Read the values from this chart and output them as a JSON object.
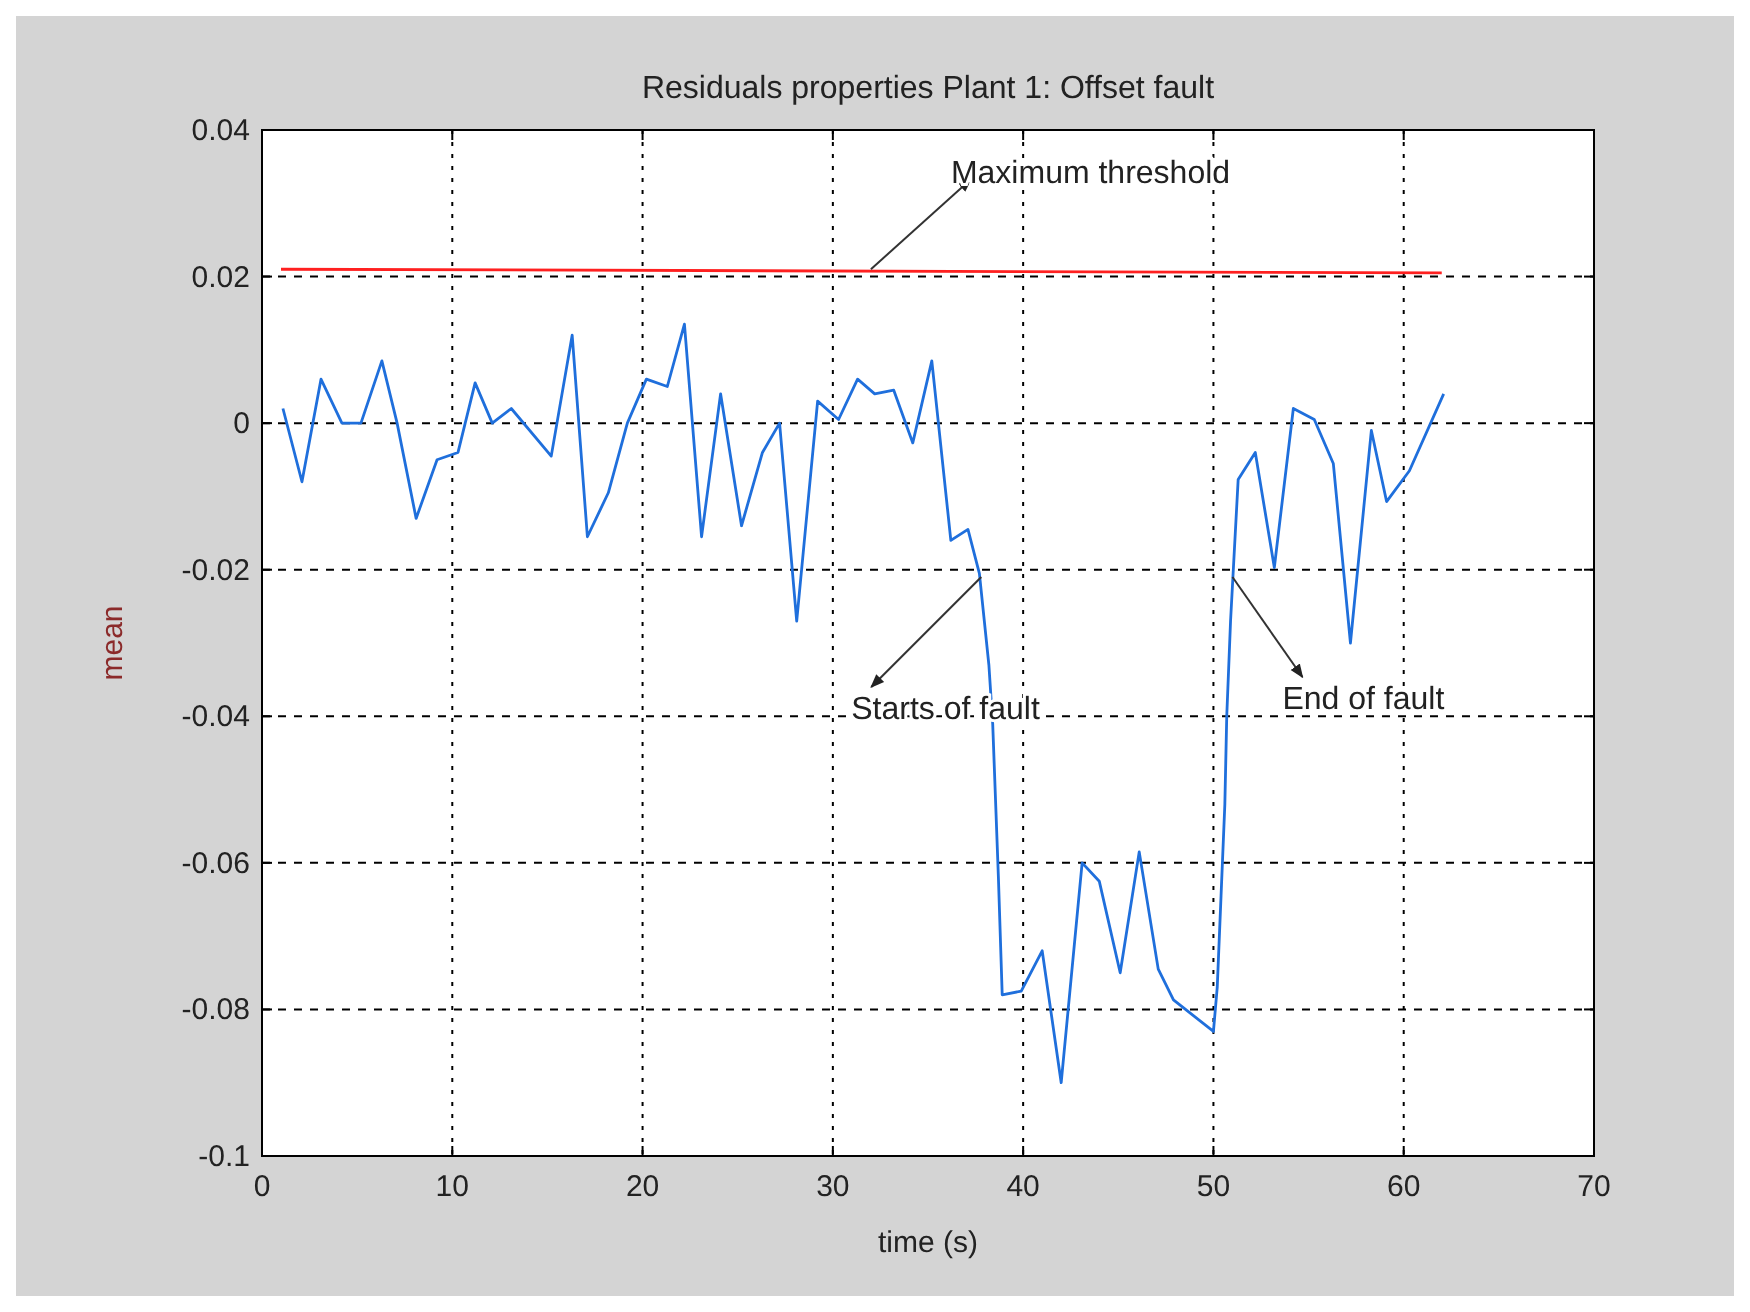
{
  "chart_data": {
    "type": "line",
    "title": "Residuals properties Plant 1: Offset fault",
    "xlabel": "time (s)",
    "ylabel": "mean",
    "xlim": [
      0,
      70
    ],
    "xticks": [
      0,
      10,
      20,
      30,
      40,
      50,
      60,
      70
    ],
    "ylim": [
      -0.1,
      0.04
    ],
    "yticks": [
      -0.1,
      -0.08,
      -0.06,
      -0.04,
      -0.02,
      0,
      0.02,
      0.04
    ],
    "grid": true,
    "series": [
      {
        "color": "#1f6fdc",
        "x": [
          1.1,
          2.1,
          3.1,
          4.2,
          5.2,
          6.3,
          7.1,
          8.1,
          9.2,
          10.3,
          11.2,
          12.1,
          13.1,
          15.2,
          16.3,
          17.1,
          18.2,
          19.2,
          20.2,
          21.3,
          22.2,
          23.1,
          24.1,
          25.2,
          26.3,
          27.2,
          28.1,
          29.2,
          30.3,
          31.3,
          32.2,
          33.2,
          34.2,
          35.2,
          36.2,
          37.1,
          37.7,
          38.2,
          38.4,
          38.7,
          38.9,
          39.9,
          41.0,
          42.0,
          43.1,
          44.0,
          45.1,
          46.1,
          47.1,
          47.9,
          50.0,
          50.2,
          50.4,
          50.6,
          50.7,
          50.9,
          51.3,
          52.2,
          53.2,
          54.2,
          55.3,
          56.3,
          57.2,
          58.3,
          59.1,
          60.3,
          62.1
        ],
        "values": [
          0.002,
          -0.008,
          0.006,
          0,
          0,
          0.0085,
          0,
          -0.013,
          -0.005,
          -0.004,
          0.0055,
          0,
          0.002,
          -0.0045,
          0.012,
          -0.0155,
          -0.0095,
          0,
          0.006,
          0.005,
          0.0135,
          -0.0155,
          0.004,
          -0.014,
          -0.004,
          0,
          -0.027,
          0.003,
          0.0005,
          0.006,
          0.004,
          0.0045,
          -0.0027,
          0.0085,
          -0.016,
          -0.0145,
          -0.0205,
          -0.033,
          -0.041,
          -0.062,
          -0.078,
          -0.0775,
          -0.072,
          -0.09,
          -0.06,
          -0.0625,
          -0.075,
          -0.0585,
          -0.0745,
          -0.0787,
          -0.083,
          -0.077,
          -0.0645,
          -0.052,
          -0.04,
          -0.027,
          -0.0077,
          -0.004,
          -0.0197,
          0.002,
          0.0005,
          -0.0055,
          -0.03,
          -0.001,
          -0.0107,
          -0.0065,
          0.004
        ]
      },
      {
        "color": "#ff2020",
        "x": [
          1,
          62
        ],
        "values": [
          0.021,
          0.0205
        ]
      }
    ],
    "annotations": [
      {
        "text": "Maximum threshold",
        "x": 32,
        "y": 0.021
      },
      {
        "text": "Starts of fault",
        "x": 37.8,
        "y": -0.021
      },
      {
        "text": "End of fault",
        "x": 51,
        "y": -0.021
      }
    ]
  }
}
